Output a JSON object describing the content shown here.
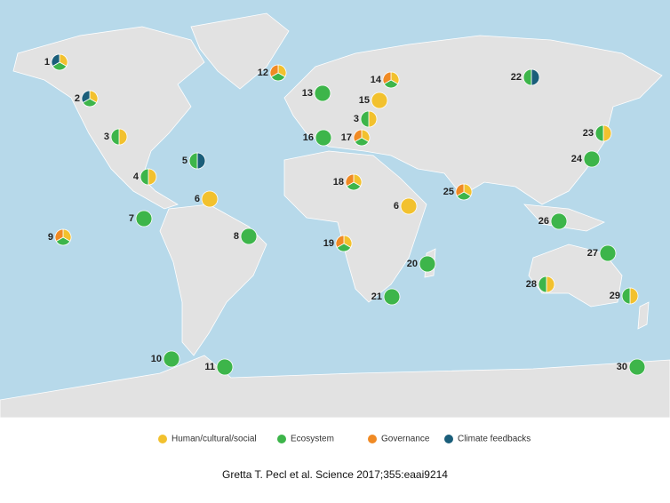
{
  "map": {
    "markers": [
      {
        "label": "1",
        "colors": [
          "#f2c12e",
          "#3db54a",
          "#1a5e7a"
        ]
      },
      {
        "label": "2",
        "colors": [
          "#f2c12e",
          "#3db54a",
          "#1a5e7a"
        ]
      },
      {
        "label": "3",
        "colors": [
          "#f2c12e",
          "#3db54a"
        ]
      },
      {
        "label": "4",
        "colors": [
          "#f2c12e",
          "#3db54a"
        ]
      },
      {
        "label": "5",
        "colors": [
          "#1a5e7a",
          "#3db54a"
        ]
      },
      {
        "label": "6",
        "colors": [
          "#f2c12e"
        ]
      },
      {
        "label": "7",
        "colors": [
          "#3db54a"
        ]
      },
      {
        "label": "8",
        "colors": [
          "#3db54a"
        ]
      },
      {
        "label": "9",
        "colors": [
          "#f2c12e",
          "#3db54a",
          "#f08a24"
        ]
      },
      {
        "label": "10",
        "colors": [
          "#3db54a"
        ]
      },
      {
        "label": "11",
        "colors": [
          "#3db54a"
        ]
      },
      {
        "label": "12",
        "colors": [
          "#f2c12e",
          "#3db54a",
          "#f08a24"
        ]
      },
      {
        "label": "13",
        "colors": [
          "#3db54a"
        ]
      },
      {
        "label": "14",
        "colors": [
          "#f2c12e",
          "#3db54a",
          "#f08a24"
        ]
      },
      {
        "label": "15",
        "colors": [
          "#f2c12e"
        ]
      },
      {
        "label": "3",
        "colors": [
          "#f2c12e",
          "#3db54a"
        ]
      },
      {
        "label": "16",
        "colors": [
          "#3db54a"
        ]
      },
      {
        "label": "17",
        "colors": [
          "#f2c12e",
          "#3db54a",
          "#f08a24"
        ]
      },
      {
        "label": "18",
        "colors": [
          "#f2c12e",
          "#3db54a",
          "#f08a24"
        ]
      },
      {
        "label": "6",
        "colors": [
          "#f2c12e"
        ]
      },
      {
        "label": "19",
        "colors": [
          "#f2c12e",
          "#3db54a",
          "#f08a24"
        ]
      },
      {
        "label": "20",
        "colors": [
          "#3db54a"
        ]
      },
      {
        "label": "21",
        "colors": [
          "#3db54a"
        ]
      },
      {
        "label": "22",
        "colors": [
          "#1a5e7a",
          "#3db54a"
        ]
      },
      {
        "label": "23",
        "colors": [
          "#f2c12e",
          "#3db54a"
        ]
      },
      {
        "label": "24",
        "colors": [
          "#3db54a"
        ]
      },
      {
        "label": "25",
        "colors": [
          "#f2c12e",
          "#3db54a",
          "#f08a24"
        ]
      },
      {
        "label": "26",
        "colors": [
          "#3db54a"
        ]
      },
      {
        "label": "27",
        "colors": [
          "#3db54a"
        ]
      },
      {
        "label": "28",
        "colors": [
          "#f2c12e",
          "#3db54a"
        ]
      },
      {
        "label": "29",
        "colors": [
          "#f2c12e",
          "#3db54a"
        ]
      },
      {
        "label": "30",
        "colors": [
          "#3db54a"
        ]
      }
    ],
    "legend": [
      {
        "label": "Human/cultural/social",
        "color": "#f2c12e"
      },
      {
        "label": "Ecosystem",
        "color": "#3db54a"
      },
      {
        "label": "Governance",
        "color": "#f08a24"
      },
      {
        "label": "Climate feedbacks",
        "color": "#1a5e7a"
      }
    ],
    "caption": "Gretta T. Pecl et al. Science 2017;355:eaai9214"
  }
}
